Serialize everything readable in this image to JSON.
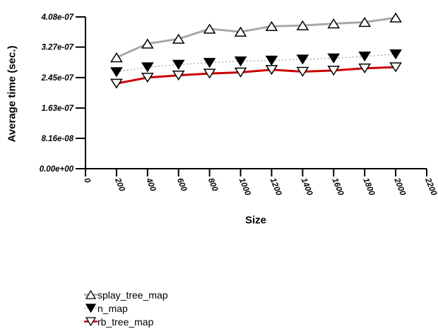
{
  "chart_data": {
    "type": "line",
    "title": "",
    "xlabel": "Size",
    "ylabel": "Average time (sec.)",
    "grid": false,
    "legend_position": "bottom-left",
    "xlim": [
      0,
      2200
    ],
    "ylim": [
      0,
      4.08e-07
    ],
    "x_ticks": [
      0,
      200,
      400,
      600,
      800,
      1000,
      1200,
      1400,
      1600,
      1800,
      2000,
      2200
    ],
    "x_tick_labels": [
      "0",
      "200",
      "400",
      "600",
      "800",
      "1000",
      "1200",
      "1400",
      "1600",
      "1800",
      "2000",
      "2200"
    ],
    "y_ticks": [
      0,
      8.16e-08,
      1.63e-07,
      2.45e-07,
      3.27e-07,
      4.08e-07
    ],
    "y_tick_labels": [
      "0.00e+00",
      "8.16e-08",
      "1.63e-07",
      "2.45e-07",
      "3.27e-07",
      "4.08e-07"
    ],
    "x": [
      200,
      400,
      600,
      800,
      1000,
      1200,
      1400,
      1600,
      1800,
      2000
    ],
    "series": [
      {
        "name": "splay_tree_map",
        "marker": "triangle-up-open",
        "line_color": "#a8a8a8",
        "line_width": 3,
        "line_style": "solid",
        "values": [
          2.99e-07,
          3.36e-07,
          3.49e-07,
          3.76e-07,
          3.68e-07,
          3.83e-07,
          3.85e-07,
          3.9e-07,
          3.94e-07,
          4.06e-07
        ]
      },
      {
        "name": "n_map",
        "marker": "triangle-down-filled",
        "line_color": "#8c8c8c",
        "line_width": 1,
        "line_style": "dotted",
        "values": [
          2.6e-07,
          2.73e-07,
          2.8e-07,
          2.85e-07,
          2.89e-07,
          2.91e-07,
          2.94e-07,
          2.97e-07,
          3.02e-07,
          3.08e-07
        ]
      },
      {
        "name": "rb_tree_map",
        "marker": "triangle-down-open",
        "line_color": "#cc0000",
        "line_width": 3,
        "line_style": "solid",
        "values": [
          2.29e-07,
          2.45e-07,
          2.51e-07,
          2.56e-07,
          2.59e-07,
          2.66e-07,
          2.61e-07,
          2.64e-07,
          2.7e-07,
          2.73e-07
        ]
      }
    ]
  },
  "colors": {
    "axis": "#000000",
    "marker_stroke": "#000000",
    "marker_open_fill": "#ffffff",
    "marker_filled_fill": "#000000",
    "splay_line": "#a8a8a8",
    "n_map_line": "#8c8c8c",
    "rb_line": "#cc0000"
  }
}
